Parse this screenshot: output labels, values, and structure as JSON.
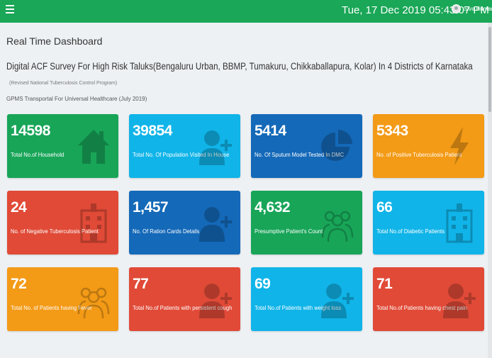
{
  "header": {
    "datetime": "Tue, 17 Dec 2019  05:43:07 PM",
    "user_name": "Siva Kumar",
    "brand_color": "#1aa757"
  },
  "page": {
    "title": "Real Time Dashboard",
    "survey_title": "Digital ACF Survey For High Risk Taluks(Bengaluru Urban, BBMP, Tumakuru, Chikkaballapura, Kolar) In 4 Districts of Karnataka",
    "program": "(Revised National Tuberculosis Control Program)",
    "transport": "GPMS Transportal For Universal Healthcare (July 2019)"
  },
  "cards": [
    {
      "value": "14598",
      "label": "Total No.of Household",
      "color": "green",
      "icon": "home-icon"
    },
    {
      "value": "39854",
      "label": "Total No. Of Population Visited In House",
      "color": "sky",
      "icon": "user-add-icon"
    },
    {
      "value": "5414",
      "label": "No. Of Sputum Model Tested In DMC",
      "color": "blue",
      "icon": "pie-chart-icon"
    },
    {
      "value": "5343",
      "label": "No. of Positive Tuberculosis Patient",
      "color": "orange",
      "icon": "bolt-icon"
    },
    {
      "value": "24",
      "label": "No. of Negative Tuberculosis Patient",
      "color": "red",
      "icon": "hospital-icon"
    },
    {
      "value": "1,457",
      "label": "No. Of Ration Cards Details",
      "color": "blue",
      "icon": "user-add-icon"
    },
    {
      "value": "4,632",
      "label": "Presumptive Patient's Count",
      "color": "green",
      "icon": "group-icon"
    },
    {
      "value": "66",
      "label": "Total No.of Diabetic Patients",
      "color": "sky",
      "icon": "hospital-icon"
    },
    {
      "value": "72",
      "label": "Total No. of Patients having Fever",
      "color": "orange",
      "icon": "group-icon"
    },
    {
      "value": "77",
      "label": "Total No.of Patients with persistent cough",
      "color": "red",
      "icon": "user-add-icon"
    },
    {
      "value": "69",
      "label": "Total No.of Patients with weight loss",
      "color": "sky",
      "icon": "user-add-icon"
    },
    {
      "value": "71",
      "label": "Total No.of Patients having chest pain",
      "color": "red",
      "icon": "user-add-icon"
    }
  ]
}
